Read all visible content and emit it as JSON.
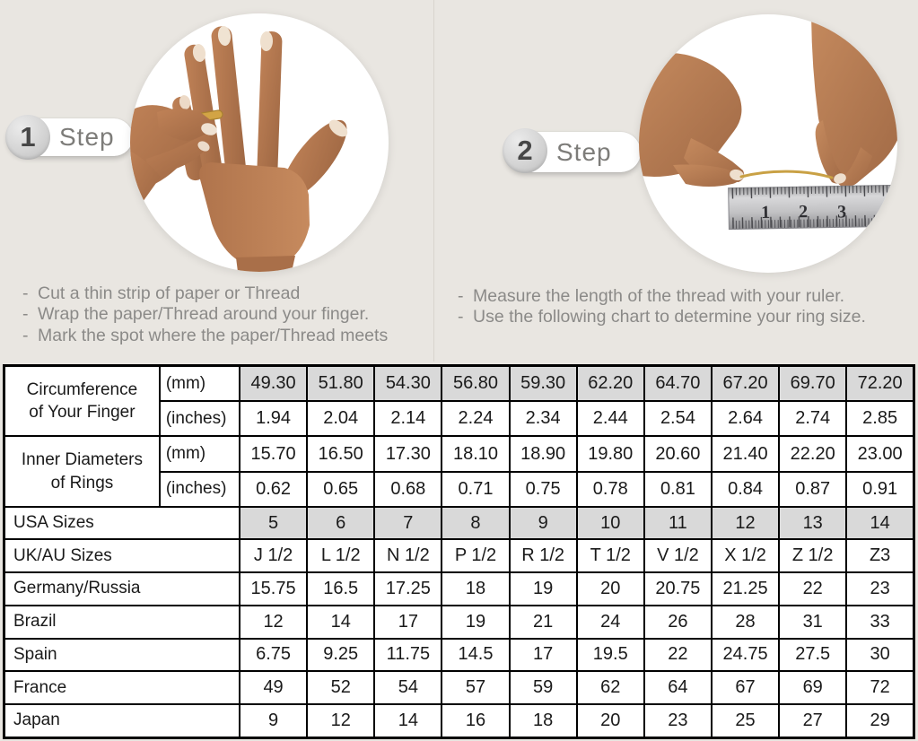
{
  "colors": {
    "page_bg": "#e9e6e1",
    "shaded_cell": "#d9d9d9",
    "table_border": "#000000",
    "instruction_text": "#8b8a88",
    "ring_gold": "#d2a445"
  },
  "images": {
    "step1": "hand-with-ring-photo",
    "step2": "measuring-thread-with-ruler-photo"
  },
  "steps": [
    {
      "number": "1",
      "label": "Step",
      "instructions": [
        "Cut a thin strip of paper or Thread",
        "Wrap the paper/Thread around your finger.",
        "Mark the spot where the paper/Thread meets"
      ]
    },
    {
      "number": "2",
      "label": "Step",
      "instructions": [
        "Measure the length of the thread with your ruler.",
        "Use the following chart to determine your ring size."
      ],
      "ruler_numbers": [
        "1",
        "2",
        "3"
      ]
    }
  ],
  "table": {
    "row_groups": [
      {
        "label": "Circumference of Your Finger",
        "subrows": [
          {
            "unit": "(mm)",
            "shaded": true,
            "values": [
              "49.30",
              "51.80",
              "54.30",
              "56.80",
              "59.30",
              "62.20",
              "64.70",
              "67.20",
              "69.70",
              "72.20"
            ]
          },
          {
            "unit": "(inches)",
            "shaded": false,
            "values": [
              "1.94",
              "2.04",
              "2.14",
              "2.24",
              "2.34",
              "2.44",
              "2.54",
              "2.64",
              "2.74",
              "2.85"
            ]
          }
        ]
      },
      {
        "label": "Inner Diameters of Rings",
        "subrows": [
          {
            "unit": "(mm)",
            "shaded": false,
            "values": [
              "15.70",
              "16.50",
              "17.30",
              "18.10",
              "18.90",
              "19.80",
              "20.60",
              "21.40",
              "22.20",
              "23.00"
            ]
          },
          {
            "unit": "(inches)",
            "shaded": false,
            "values": [
              "0.62",
              "0.65",
              "0.68",
              "0.71",
              "0.75",
              "0.78",
              "0.81",
              "0.84",
              "0.87",
              "0.91"
            ]
          }
        ]
      },
      {
        "label": "USA Sizes",
        "shaded": true,
        "values": [
          "5",
          "6",
          "7",
          "8",
          "9",
          "10",
          "11",
          "12",
          "13",
          "14"
        ]
      },
      {
        "label": "UK/AU Sizes",
        "shaded": false,
        "values": [
          "J 1/2",
          "L 1/2",
          "N 1/2",
          "P 1/2",
          "R 1/2",
          "T 1/2",
          "V 1/2",
          "X 1/2",
          "Z 1/2",
          "Z3"
        ]
      },
      {
        "label": "Germany/Russia",
        "shaded": false,
        "values": [
          "15.75",
          "16.5",
          "17.25",
          "18",
          "19",
          "20",
          "20.75",
          "21.25",
          "22",
          "23"
        ]
      },
      {
        "label": "Brazil",
        "shaded": false,
        "values": [
          "12",
          "14",
          "17",
          "19",
          "21",
          "24",
          "26",
          "28",
          "31",
          "33"
        ]
      },
      {
        "label": "Spain",
        "shaded": false,
        "values": [
          "6.75",
          "9.25",
          "11.75",
          "14.5",
          "17",
          "19.5",
          "22",
          "24.75",
          "27.5",
          "30"
        ]
      },
      {
        "label": "France",
        "shaded": false,
        "values": [
          "49",
          "52",
          "54",
          "57",
          "59",
          "62",
          "64",
          "67",
          "69",
          "72"
        ]
      },
      {
        "label": "Japan",
        "shaded": false,
        "values": [
          "9",
          "12",
          "14",
          "16",
          "18",
          "20",
          "23",
          "25",
          "27",
          "29"
        ]
      }
    ]
  }
}
